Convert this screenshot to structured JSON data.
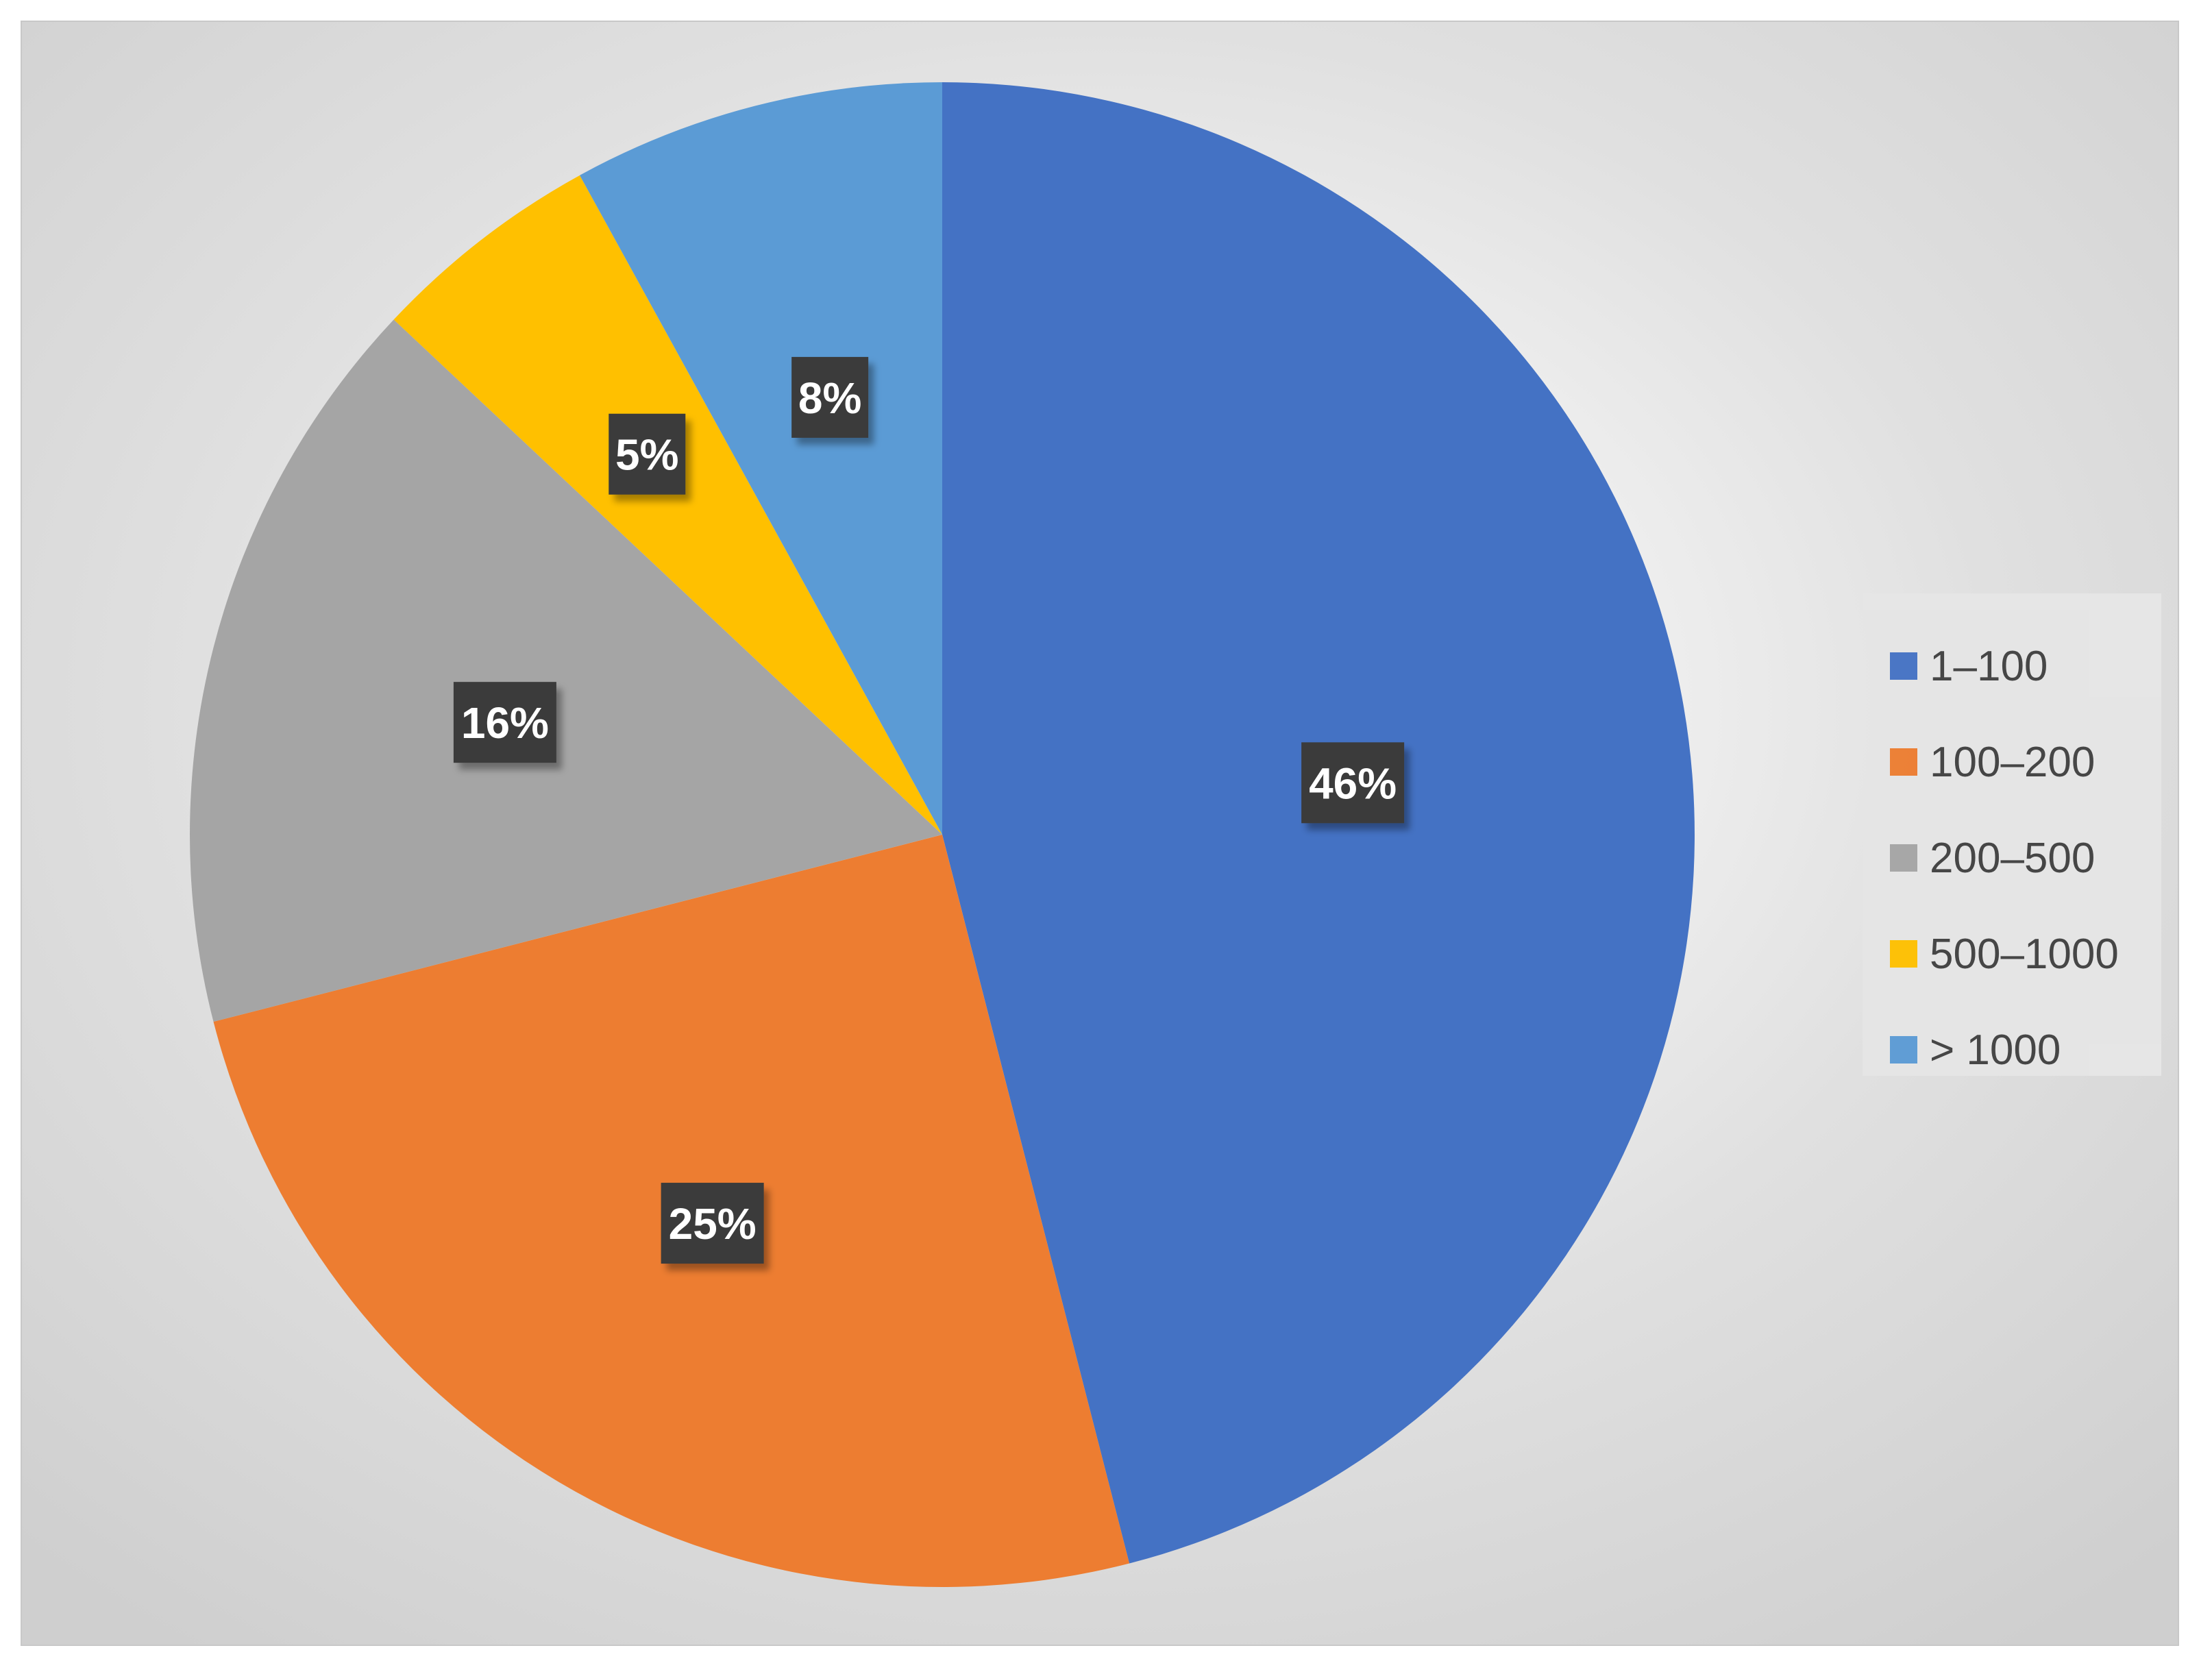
{
  "chart_data": {
    "type": "pie",
    "title": "",
    "categories": [
      "1–100",
      "100–200",
      "200–500",
      "500–1000",
      "> 1000"
    ],
    "values": [
      46,
      25,
      16,
      5,
      8
    ],
    "data_labels": [
      "46%",
      "25%",
      "16%",
      "5%",
      "8%"
    ],
    "colors": [
      "#4472c4",
      "#ed7d31",
      "#a5a5a5",
      "#ffc000",
      "#5b9bd5"
    ],
    "start_angle": "12 o'clock",
    "direction": "clockwise",
    "legend": {
      "position": "right",
      "items": [
        {
          "label": "1–100",
          "color": "#4472c4"
        },
        {
          "label": "100–200",
          "color": "#ed7d31"
        },
        {
          "label": "200–500",
          "color": "#a5a5a5"
        },
        {
          "label": "500–1000",
          "color": "#ffc000"
        },
        {
          "label": "> 1000",
          "color": "#5b9bd5"
        }
      ]
    }
  }
}
